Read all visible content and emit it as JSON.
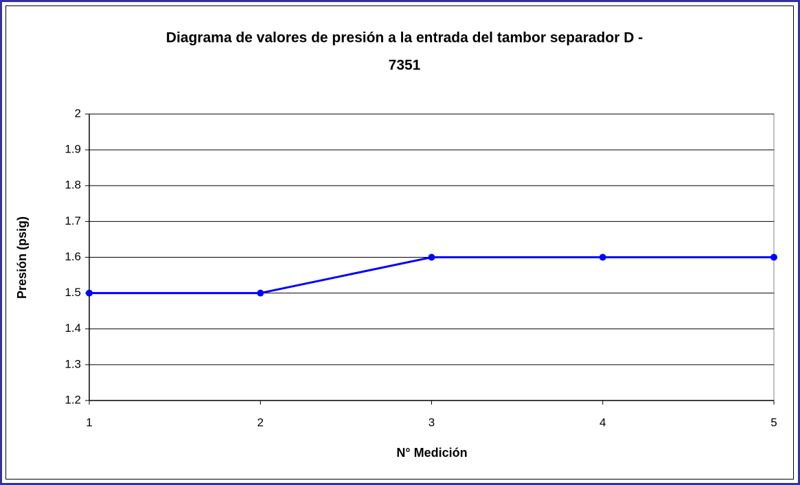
{
  "chart_data": {
    "type": "line",
    "title": [
      "Diagrama de valores de presión a la entrada del tambor separador D -",
      "7351"
    ],
    "x_label": "N° Medición",
    "y_label": "Presión (psig)",
    "x": [
      1,
      2,
      3,
      4,
      5
    ],
    "series": [
      {
        "name": "Presión",
        "color": "#0000ff",
        "values": [
          1.5,
          1.5,
          1.6,
          1.6,
          1.6
        ]
      }
    ],
    "xlim": [
      1,
      5
    ],
    "xticks": [
      1,
      2,
      3,
      4,
      5
    ],
    "ylim": [
      1.2,
      2
    ],
    "yticks": [
      1.2,
      1.3,
      1.4,
      1.5,
      1.6,
      1.7,
      1.8,
      1.9,
      2
    ],
    "grid": true
  }
}
